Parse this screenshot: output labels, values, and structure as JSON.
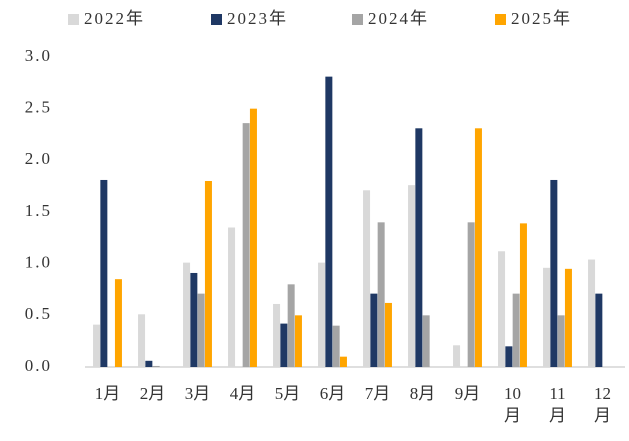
{
  "chart_data": {
    "type": "bar",
    "categories": [
      "1月",
      "2月",
      "3月",
      "4月",
      "5月",
      "6月",
      "7月",
      "8月",
      "9月",
      "10月",
      "11月",
      "12月"
    ],
    "series": [
      {
        "name": "2022年",
        "color": "#d9d9d9",
        "values": [
          0.41,
          0.51,
          1.01,
          1.35,
          0.61,
          1.01,
          1.71,
          1.76,
          0.21,
          1.12,
          0.96,
          1.04
        ]
      },
      {
        "name": "2023年",
        "color": "#1f3864",
        "values": [
          1.81,
          0.06,
          0.91,
          null,
          0.42,
          2.81,
          0.71,
          2.31,
          null,
          0.2,
          1.81,
          0.71
        ]
      },
      {
        "name": "2024年",
        "color": "#a5a5a5",
        "values": [
          null,
          0.01,
          0.71,
          2.36,
          0.8,
          0.4,
          1.4,
          0.5,
          1.4,
          0.71,
          0.5,
          null
        ]
      },
      {
        "name": "2025年",
        "color": "#ffa500",
        "values": [
          0.85,
          null,
          1.8,
          2.5,
          0.5,
          0.1,
          0.62,
          null,
          2.31,
          1.39,
          0.95,
          null
        ]
      }
    ],
    "ylim": [
      0,
      3
    ],
    "yticks": [
      {
        "value": 0,
        "label": "0.0"
      },
      0.5,
      {
        "value": 1,
        "label": "1.0"
      },
      1.5,
      {
        "value": 2,
        "label": "2.0"
      },
      2.5,
      {
        "value": 3,
        "label": "3.0"
      }
    ],
    "legend": "top"
  }
}
